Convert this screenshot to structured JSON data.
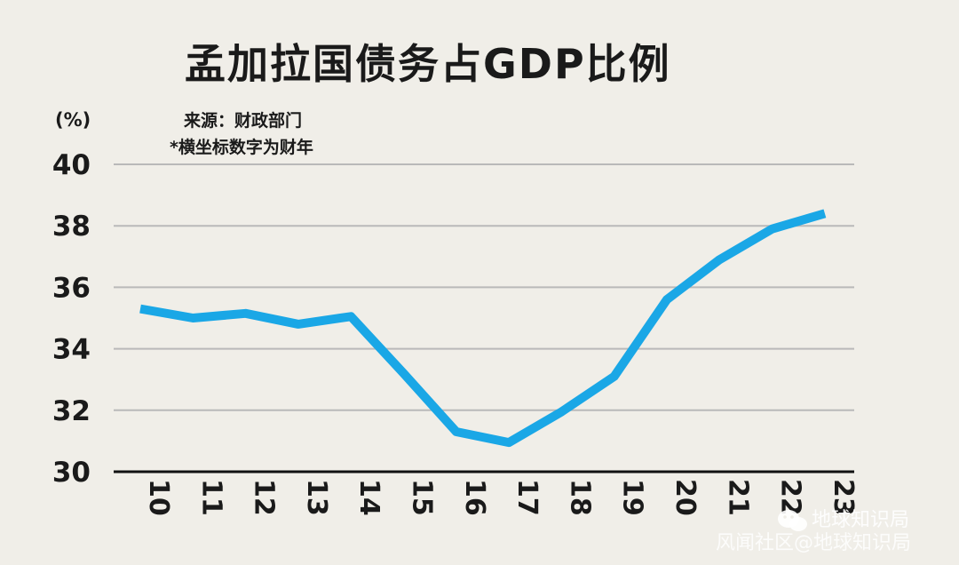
{
  "chart_data": {
    "type": "line",
    "title": "孟加拉国债务占GDP比例",
    "source": "来源：财政部门",
    "note": "*横坐标数字为财年",
    "unit_label": "(%)",
    "ylim": [
      30,
      40
    ],
    "yticks": [
      30,
      32,
      34,
      36,
      38,
      40
    ],
    "categories": [
      "10",
      "11",
      "12",
      "13",
      "14",
      "15",
      "16",
      "17",
      "18",
      "19",
      "20",
      "21",
      "22",
      "23"
    ],
    "series": [
      {
        "name": "债务占GDP比例",
        "color": "#1aa7e6",
        "values": [
          35.3,
          35.0,
          35.15,
          34.8,
          35.05,
          33.2,
          31.3,
          30.95,
          31.95,
          33.1,
          35.6,
          36.9,
          37.9,
          38.4
        ]
      }
    ],
    "grid": true
  },
  "watermark": {
    "logo_text": "地球知识局",
    "credit_text": "风闻社区@地球知识局"
  }
}
